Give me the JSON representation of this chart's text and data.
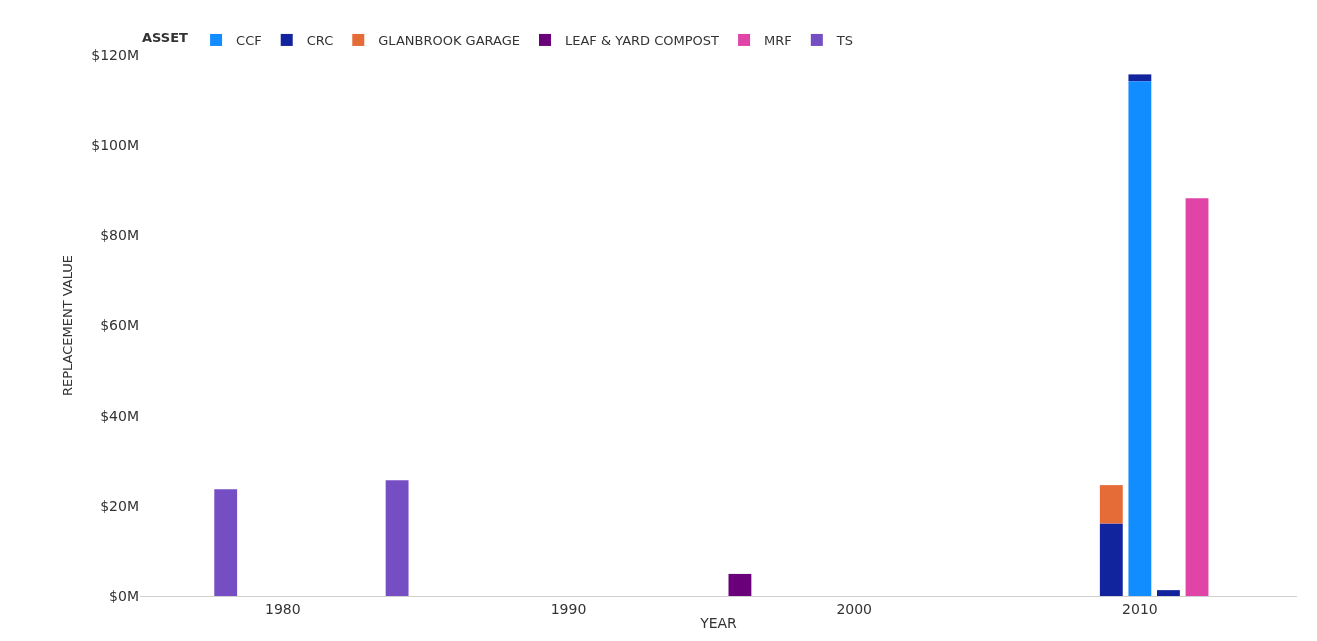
{
  "chart_data": {
    "type": "bar",
    "stacked": true,
    "xlabel": "YEAR",
    "ylabel": "REPLACEMENT VALUE",
    "legend_title": "ASSET",
    "legend": "top left",
    "x": [
      1978,
      1984,
      1996,
      2009,
      2010,
      2011,
      2012
    ],
    "xlim": [
      1975,
      2015.5
    ],
    "xticks": [
      1980,
      1990,
      2000,
      2010
    ],
    "ylim": [
      0,
      120
    ],
    "yticks": [
      {
        "value": 0,
        "label": "$0M"
      },
      {
        "value": 20,
        "label": "$20M"
      },
      {
        "value": 40,
        "label": "$40M"
      },
      {
        "value": 60,
        "label": "$60M"
      },
      {
        "value": 80,
        "label": "$80M"
      },
      {
        "value": 100,
        "label": "$100M"
      },
      {
        "value": 120,
        "label": "$120M"
      }
    ],
    "series": [
      {
        "name": "CCF",
        "color": "#118dff",
        "values": [
          null,
          null,
          null,
          null,
          114.2,
          null,
          null
        ]
      },
      {
        "name": "CRC",
        "color": "#12239e",
        "values": [
          null,
          null,
          null,
          16.1,
          1.5,
          1.3,
          null
        ]
      },
      {
        "name": "GLANBROOK GARAGE",
        "color": "#e66c37",
        "values": [
          null,
          null,
          null,
          8.5,
          null,
          null,
          null
        ]
      },
      {
        "name": "LEAF & YARD COMPOST",
        "color": "#6b007b",
        "values": [
          null,
          null,
          4.9,
          null,
          null,
          null,
          null
        ]
      },
      {
        "name": "MRF",
        "color": "#e044a7",
        "values": [
          null,
          null,
          null,
          null,
          null,
          null,
          88.2
        ]
      },
      {
        "name": "TS",
        "color": "#744ec2",
        "values": [
          23.7,
          25.7,
          null,
          null,
          null,
          null,
          null
        ]
      }
    ]
  }
}
